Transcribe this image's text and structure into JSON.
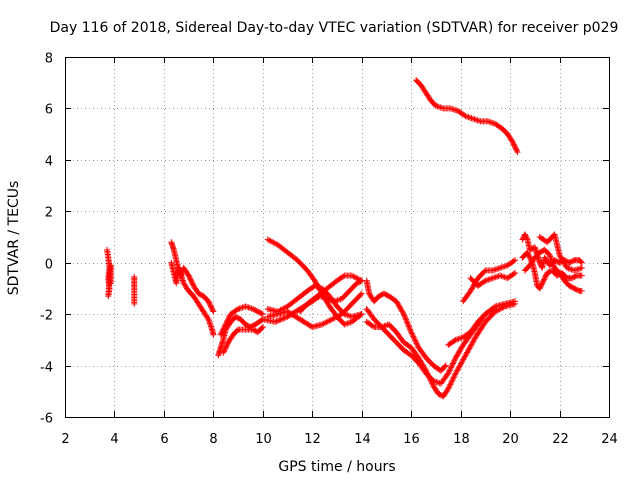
{
  "chart_data": {
    "type": "scatter",
    "title": "Day 116 of 2018, Sidereal Day-to-day VTEC variation (SDTVAR) for receiver p029",
    "xlabel": "GPS time / hours",
    "ylabel": "SDTVAR / TECUs",
    "xlim": [
      2,
      24
    ],
    "ylim": [
      -6,
      8
    ],
    "xticks": [
      "2",
      "4",
      "6",
      "8",
      "10",
      "12",
      "14",
      "16",
      "18",
      "20",
      "22",
      "24"
    ],
    "yticks": [
      "-6",
      "-4",
      "-2",
      "0",
      "2",
      "4",
      "6",
      "8"
    ],
    "grid": true,
    "marker": "+",
    "series": [
      {
        "name": "p029",
        "color": "#ff0000",
        "segments": [
          [
            [
              3.7,
              0.5
            ],
            [
              3.75,
              0.2
            ],
            [
              3.8,
              -0.2
            ],
            [
              3.75,
              -0.6
            ],
            [
              3.8,
              -1.0
            ],
            [
              3.75,
              -1.3
            ],
            [
              3.85,
              -0.1
            ],
            [
              3.85,
              -0.8
            ]
          ],
          [
            [
              4.8,
              -0.55
            ],
            [
              4.8,
              -1.05
            ],
            [
              4.8,
              -1.6
            ]
          ],
          [
            [
              6.3,
              0.8
            ],
            [
              6.4,
              0.5
            ],
            [
              6.5,
              0.1
            ],
            [
              6.6,
              -0.3
            ],
            [
              6.7,
              -0.5
            ],
            [
              6.8,
              -0.2
            ],
            [
              7.0,
              -0.5
            ],
            [
              7.2,
              -0.9
            ],
            [
              7.4,
              -1.2
            ],
            [
              7.6,
              -1.3
            ],
            [
              7.8,
              -1.5
            ],
            [
              8.0,
              -1.9
            ]
          ],
          [
            [
              6.3,
              0.0
            ],
            [
              6.4,
              -0.4
            ],
            [
              6.5,
              -0.8
            ],
            [
              6.6,
              -0.2
            ],
            [
              6.8,
              -0.8
            ],
            [
              7.0,
              -1.1
            ],
            [
              7.2,
              -1.3
            ],
            [
              7.4,
              -1.6
            ],
            [
              7.6,
              -1.9
            ],
            [
              7.8,
              -2.2
            ],
            [
              7.95,
              -2.6
            ],
            [
              8.0,
              -2.8
            ]
          ],
          [
            [
              8.2,
              -3.6
            ],
            [
              8.3,
              -3.3
            ],
            [
              8.4,
              -3.0
            ],
            [
              8.5,
              -2.6
            ],
            [
              8.7,
              -2.3
            ],
            [
              8.9,
              -2.1
            ],
            [
              9.1,
              -2.2
            ],
            [
              9.3,
              -2.4
            ],
            [
              9.5,
              -2.5
            ],
            [
              9.7,
              -2.4
            ],
            [
              10.0,
              -2.2
            ]
          ],
          [
            [
              8.3,
              -2.8
            ],
            [
              8.5,
              -2.4
            ],
            [
              8.7,
              -2.0
            ],
            [
              9.0,
              -1.8
            ],
            [
              9.3,
              -1.7
            ],
            [
              9.6,
              -1.8
            ],
            [
              9.8,
              -1.9
            ],
            [
              10.0,
              -2.0
            ]
          ],
          [
            [
              8.4,
              -3.5
            ],
            [
              8.6,
              -3.1
            ],
            [
              8.8,
              -2.8
            ],
            [
              9.0,
              -2.6
            ],
            [
              9.3,
              -2.6
            ],
            [
              9.6,
              -2.6
            ],
            [
              9.8,
              -2.7
            ],
            [
              10.0,
              -2.5
            ]
          ],
          [
            [
              10.0,
              -2.2
            ],
            [
              10.5,
              -2.3
            ],
            [
              11.0,
              -2.1
            ],
            [
              11.5,
              -1.8
            ],
            [
              12.0,
              -1.5
            ],
            [
              12.3,
              -1.3
            ],
            [
              12.6,
              -1.4
            ],
            [
              12.9,
              -1.5
            ],
            [
              13.2,
              -1.4
            ],
            [
              13.5,
              -1.1
            ],
            [
              13.8,
              -0.8
            ],
            [
              14.0,
              -0.7
            ]
          ],
          [
            [
              10.2,
              -1.8
            ],
            [
              10.6,
              -1.9
            ],
            [
              11.0,
              -1.7
            ],
            [
              11.4,
              -1.4
            ],
            [
              11.8,
              -1.1
            ],
            [
              12.1,
              -0.9
            ],
            [
              12.4,
              -1.0
            ],
            [
              12.7,
              -1.3
            ],
            [
              13.0,
              -1.7
            ],
            [
              13.3,
              -2.0
            ],
            [
              13.6,
              -2.1
            ],
            [
              14.0,
              -2.0
            ]
          ],
          [
            [
              10.2,
              -2.1
            ],
            [
              10.6,
              -2.0
            ],
            [
              11.0,
              -1.9
            ],
            [
              11.5,
              -2.2
            ],
            [
              12.0,
              -2.5
            ],
            [
              12.4,
              -2.4
            ],
            [
              12.8,
              -2.2
            ],
            [
              13.2,
              -2.0
            ],
            [
              13.6,
              -1.6
            ],
            [
              14.0,
              -1.2
            ]
          ],
          [
            [
              10.2,
              0.9
            ],
            [
              10.6,
              0.7
            ],
            [
              11.0,
              0.4
            ],
            [
              11.4,
              0.1
            ],
            [
              11.8,
              -0.3
            ],
            [
              12.1,
              -0.7
            ],
            [
              12.4,
              -1.2
            ],
            [
              12.7,
              -1.7
            ],
            [
              13.0,
              -2.1
            ],
            [
              13.3,
              -2.4
            ],
            [
              13.6,
              -2.3
            ],
            [
              14.0,
              -2.0
            ]
          ],
          [
            [
              11.5,
              -1.9
            ],
            [
              11.8,
              -1.6
            ],
            [
              12.2,
              -1.3
            ],
            [
              12.6,
              -1.0
            ],
            [
              13.0,
              -0.7
            ],
            [
              13.3,
              -0.5
            ],
            [
              13.6,
              -0.5
            ],
            [
              14.0,
              -0.7
            ]
          ],
          [
            [
              14.2,
              -0.7
            ],
            [
              14.3,
              -1.2
            ],
            [
              14.5,
              -1.5
            ],
            [
              14.7,
              -1.3
            ],
            [
              14.9,
              -1.2
            ],
            [
              15.1,
              -1.3
            ],
            [
              15.4,
              -1.5
            ],
            [
              15.7,
              -2.0
            ],
            [
              16.0,
              -2.7
            ],
            [
              16.3,
              -3.3
            ],
            [
              16.6,
              -3.7
            ],
            [
              16.9,
              -4.0
            ],
            [
              17.2,
              -4.2
            ],
            [
              17.4,
              -4.0
            ]
          ],
          [
            [
              14.2,
              -2.3
            ],
            [
              14.5,
              -2.5
            ],
            [
              14.8,
              -2.5
            ],
            [
              15.1,
              -2.4
            ],
            [
              15.4,
              -2.7
            ],
            [
              15.7,
              -3.1
            ],
            [
              16.0,
              -3.3
            ],
            [
              16.3,
              -3.7
            ],
            [
              16.6,
              -4.2
            ],
            [
              16.9,
              -4.8
            ],
            [
              17.1,
              -5.1
            ],
            [
              17.3,
              -5.2
            ],
            [
              17.5,
              -4.9
            ],
            [
              17.8,
              -4.3
            ],
            [
              18.2,
              -3.6
            ],
            [
              18.6,
              -2.9
            ],
            [
              19.0,
              -2.3
            ],
            [
              19.4,
              -1.9
            ],
            [
              19.8,
              -1.7
            ],
            [
              20.2,
              -1.6
            ]
          ],
          [
            [
              14.2,
              -1.8
            ],
            [
              14.5,
              -2.2
            ],
            [
              14.8,
              -2.5
            ],
            [
              15.1,
              -2.8
            ],
            [
              15.4,
              -3.1
            ],
            [
              15.7,
              -3.4
            ],
            [
              16.0,
              -3.6
            ],
            [
              16.3,
              -3.9
            ],
            [
              16.6,
              -4.3
            ],
            [
              16.9,
              -4.6
            ],
            [
              17.2,
              -4.7
            ],
            [
              17.5,
              -4.3
            ],
            [
              17.8,
              -3.7
            ],
            [
              18.1,
              -3.2
            ],
            [
              18.4,
              -2.8
            ],
            [
              18.7,
              -2.4
            ],
            [
              19.0,
              -2.0
            ],
            [
              19.4,
              -1.7
            ],
            [
              19.8,
              -1.6
            ],
            [
              20.2,
              -1.5
            ]
          ],
          [
            [
              17.5,
              -3.2
            ],
            [
              17.8,
              -3.0
            ],
            [
              18.1,
              -2.9
            ],
            [
              18.4,
              -2.7
            ],
            [
              18.7,
              -2.3
            ],
            [
              19.0,
              -2.0
            ],
            [
              19.3,
              -1.8
            ]
          ],
          [
            [
              18.1,
              -1.5
            ],
            [
              18.4,
              -1.1
            ],
            [
              18.7,
              -0.6
            ],
            [
              19.0,
              -0.3
            ],
            [
              19.3,
              -0.3
            ],
            [
              19.6,
              -0.2
            ],
            [
              19.9,
              -0.1
            ],
            [
              20.2,
              0.1
            ]
          ],
          [
            [
              18.4,
              -0.6
            ],
            [
              18.7,
              -0.9
            ],
            [
              19.0,
              -0.7
            ],
            [
              19.3,
              -0.6
            ],
            [
              19.6,
              -0.5
            ],
            [
              19.9,
              -0.6
            ],
            [
              20.2,
              -0.4
            ]
          ],
          [
            [
              16.2,
              7.1
            ],
            [
              16.4,
              6.9
            ],
            [
              16.6,
              6.6
            ],
            [
              16.8,
              6.3
            ],
            [
              17.0,
              6.1
            ],
            [
              17.3,
              6.0
            ],
            [
              17.6,
              6.0
            ],
            [
              17.9,
              5.9
            ],
            [
              18.2,
              5.7
            ],
            [
              18.5,
              5.6
            ],
            [
              18.8,
              5.5
            ],
            [
              19.1,
              5.5
            ],
            [
              19.4,
              5.4
            ],
            [
              19.7,
              5.2
            ],
            [
              19.9,
              5.0
            ],
            [
              20.1,
              4.7
            ],
            [
              20.3,
              4.3
            ]
          ],
          [
            [
              20.5,
              0.9
            ],
            [
              20.6,
              1.1
            ],
            [
              20.7,
              0.9
            ],
            [
              20.8,
              0.5
            ],
            [
              21.0,
              0.6
            ],
            [
              21.1,
              0.3
            ],
            [
              21.2,
              0.0
            ],
            [
              21.3,
              -0.2
            ],
            [
              21.4,
              0.2
            ],
            [
              21.6,
              -0.1
            ],
            [
              21.8,
              0.1
            ],
            [
              22.0,
              0.0
            ],
            [
              22.2,
              0.1
            ],
            [
              22.4,
              0.0
            ],
            [
              22.6,
              0.1
            ],
            [
              22.8,
              0.1
            ],
            [
              22.9,
              0.0
            ]
          ],
          [
            [
              20.5,
              0.2
            ],
            [
              20.7,
              0.4
            ],
            [
              20.9,
              0.0
            ],
            [
              21.0,
              -0.4
            ],
            [
              21.1,
              -0.9
            ],
            [
              21.2,
              -1.0
            ],
            [
              21.3,
              -0.8
            ],
            [
              21.5,
              -0.4
            ],
            [
              21.7,
              -0.3
            ],
            [
              21.9,
              -0.5
            ],
            [
              22.1,
              -0.4
            ],
            [
              22.3,
              -0.6
            ],
            [
              22.5,
              -0.6
            ],
            [
              22.7,
              -0.5
            ],
            [
              22.9,
              -0.5
            ]
          ],
          [
            [
              20.6,
              -0.3
            ],
            [
              20.8,
              -0.1
            ],
            [
              21.0,
              0.2
            ],
            [
              21.2,
              0.4
            ],
            [
              21.4,
              0.5
            ],
            [
              21.6,
              0.3
            ],
            [
              21.8,
              -0.2
            ],
            [
              22.0,
              -0.4
            ],
            [
              22.2,
              -0.7
            ],
            [
              22.4,
              -0.9
            ],
            [
              22.6,
              -1.0
            ],
            [
              22.8,
              -1.1
            ],
            [
              22.9,
              -1.1
            ]
          ],
          [
            [
              21.2,
              1.0
            ],
            [
              21.5,
              0.8
            ],
            [
              21.8,
              1.1
            ],
            [
              22.0,
              0.3
            ],
            [
              22.3,
              -0.2
            ],
            [
              22.6,
              -0.3
            ],
            [
              22.9,
              -0.2
            ]
          ]
        ]
      }
    ]
  }
}
